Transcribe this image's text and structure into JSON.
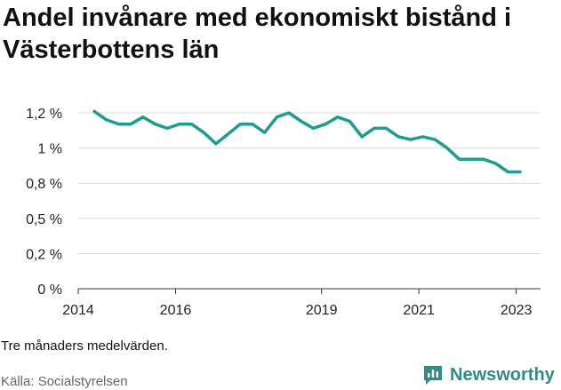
{
  "header": {
    "title": "Andel invånare med ekonomiskt bistånd i Västerbottens län"
  },
  "footer": {
    "note": "Tre månaders medelvärden.",
    "source": "Källa: Socialstyrelsen",
    "brand": "Newsworthy",
    "brand_color": "#2e8d87"
  },
  "chart_data": {
    "type": "line",
    "title": "Andel invånare med ekonomiskt bistånd i Västerbottens län",
    "xlabel": "",
    "ylabel": "",
    "grid": true,
    "line_color": "#1a9e8f",
    "y_ticks": [
      0,
      0.25,
      0.5,
      0.75,
      1.0,
      1.25
    ],
    "y_tick_labels": [
      "0 %",
      "0,2 %",
      "0,5 %",
      "0,8 %",
      "1 %",
      "1,2 %"
    ],
    "ylim": [
      0,
      1.25
    ],
    "x_ticks": [
      2014,
      2016,
      2019,
      2021,
      2023
    ],
    "x_tick_labels": [
      "2014",
      "2016",
      "2019",
      "2021",
      "2023"
    ],
    "xlim": [
      2014,
      2023.5
    ],
    "series": [
      {
        "x": [
          2014.33,
          2014.58,
          2014.83,
          2015.08,
          2015.33,
          2015.58,
          2015.83,
          2016.08,
          2016.33,
          2016.58,
          2016.83,
          2017.08,
          2017.33,
          2017.58,
          2017.83,
          2018.08,
          2018.33,
          2018.58,
          2018.83,
          2019.08,
          2019.33,
          2019.58,
          2019.83,
          2020.08,
          2020.33,
          2020.58,
          2020.83,
          2021.08,
          2021.33,
          2021.58,
          2021.83,
          2022.08,
          2022.33,
          2022.58,
          2022.83,
          2023.08
        ],
        "y": [
          1.26,
          1.2,
          1.17,
          1.17,
          1.22,
          1.17,
          1.14,
          1.17,
          1.17,
          1.11,
          1.03,
          1.1,
          1.17,
          1.17,
          1.11,
          1.22,
          1.25,
          1.19,
          1.14,
          1.17,
          1.22,
          1.19,
          1.08,
          1.14,
          1.14,
          1.08,
          1.06,
          1.08,
          1.06,
          1.0,
          0.92,
          0.92,
          0.92,
          0.89,
          0.83,
          0.83
        ]
      }
    ]
  }
}
